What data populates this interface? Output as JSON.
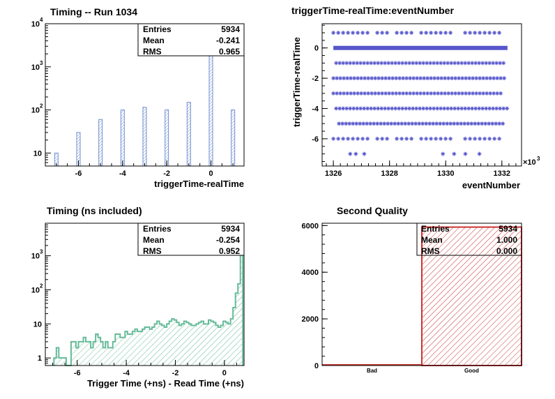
{
  "chart_data": [
    {
      "type": "bar",
      "title": "Timing -- Run 1034",
      "xlabel": "triggerTime-realTime",
      "ylabel": "",
      "log_y": true,
      "xlim": [
        -7.5,
        1.5
      ],
      "ylim": [
        5,
        10000
      ],
      "xticks": [
        -6,
        -4,
        -2,
        0
      ],
      "yticks": [
        "10",
        "10^2",
        "10^3",
        "10^4"
      ],
      "x": [
        -7,
        -6,
        -5,
        -4,
        -3,
        -2,
        -1,
        0,
        1
      ],
      "values": [
        10,
        30,
        60,
        100,
        115,
        100,
        150,
        5500,
        100
      ],
      "bar_color": "#6f8fcf",
      "stats": {
        "Entries": "5934",
        "Mean": "-0.241",
        "RMS": "0.965"
      }
    },
    {
      "type": "scatter",
      "title": "triggerTime-realTime:eventNumber",
      "xlabel": "eventNumber",
      "ylabel": "triggerTime-realTime",
      "xlim": [
        1325.6,
        1332.7
      ],
      "ylim": [
        -7.8,
        1.6
      ],
      "xticks": [
        1326,
        1328,
        1330,
        1332
      ],
      "yticks": [
        0,
        -2,
        -4,
        -6
      ],
      "x_multiplier": "×10^3",
      "marker_color": "#5555cc",
      "rows": [
        {
          "y": 1,
          "x_from": 1326.0,
          "x_to": 1332.0,
          "density": "sparse"
        },
        {
          "y": 0,
          "x_from": 1326.0,
          "x_to": 1332.2,
          "density": "solid"
        },
        {
          "y": -1,
          "x_from": 1326.1,
          "x_to": 1332.1,
          "density": "medium"
        },
        {
          "y": -2,
          "x_from": 1326.0,
          "x_to": 1332.1,
          "density": "medium"
        },
        {
          "y": -3,
          "x_from": 1326.0,
          "x_to": 1332.0,
          "density": "medium"
        },
        {
          "y": -4,
          "x_from": 1326.1,
          "x_to": 1332.2,
          "density": "medium"
        },
        {
          "y": -5,
          "x_from": 1326.2,
          "x_to": 1332.1,
          "density": "medium"
        },
        {
          "y": -6,
          "x_from": 1326.0,
          "x_to": 1332.1,
          "density": "sparse"
        },
        {
          "y": -7,
          "x_points": [
            1326.6,
            1326.8,
            1327.1,
            1329.9,
            1330.3,
            1330.7,
            1331.2
          ]
        }
      ]
    },
    {
      "type": "bar",
      "title": "Timing (ns included)",
      "xlabel": "Trigger Time (+ns) - Read Time (+ns)",
      "ylabel": "",
      "log_y": true,
      "xlim": [
        -7.3,
        0.8
      ],
      "ylim": [
        0.6,
        9000
      ],
      "xticks": [
        -6,
        -4,
        -2,
        0
      ],
      "yticks": [
        "1",
        "10",
        "10^2",
        "10^3"
      ],
      "bin_width": 0.1,
      "x_start": -6.95,
      "values": [
        1,
        2,
        1,
        1,
        1,
        0,
        0,
        3,
        3,
        2,
        3,
        3,
        4,
        3,
        3,
        2,
        3,
        5,
        4,
        3,
        2,
        3,
        2,
        2,
        3,
        5,
        5,
        4,
        4,
        6,
        5,
        5,
        6,
        7,
        6,
        6,
        7,
        8,
        8,
        7,
        8,
        10,
        12,
        10,
        9,
        8,
        10,
        12,
        14,
        13,
        11,
        9,
        10,
        12,
        11,
        10,
        9,
        9,
        10,
        11,
        12,
        10,
        10,
        13,
        12,
        11,
        9,
        8,
        9,
        12,
        11,
        10,
        14,
        30,
        80,
        150,
        4000
      ],
      "line_color": "#66bb99",
      "stats": {
        "Entries": "5934",
        "Mean": "-0.254",
        "RMS": "0.952"
      }
    },
    {
      "type": "bar",
      "title": "Second Quality",
      "xlabel": "",
      "ylabel": "",
      "categories": [
        "Bad",
        "Good"
      ],
      "values": [
        0,
        5934
      ],
      "ylim": [
        0,
        6100
      ],
      "yticks": [
        0,
        2000,
        4000,
        6000
      ],
      "line_color": "#cc3333",
      "stats": {
        "Entries": "5934",
        "Mean": "1.000",
        "RMS": "0.000"
      }
    }
  ]
}
